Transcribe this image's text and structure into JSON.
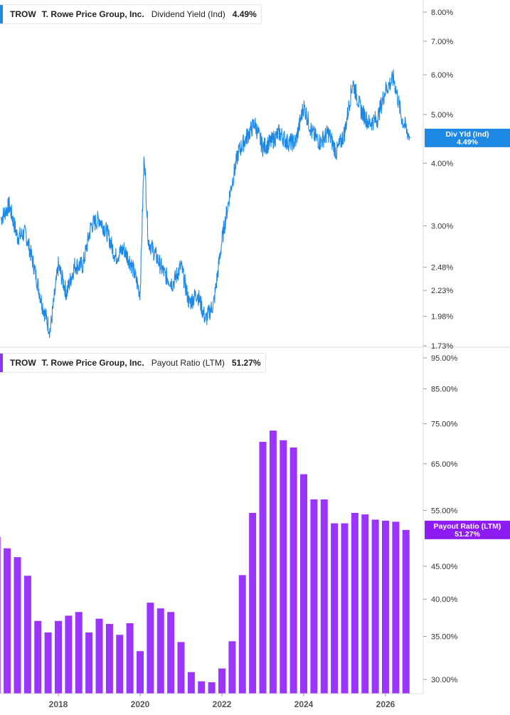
{
  "colors": {
    "yield_line": "#1e88e5",
    "payout_bar": "#9b34ff",
    "payout_tag": "#8e1cf2",
    "yield_tag": "#1e88e5"
  },
  "top_legend": {
    "ticker": "TROW",
    "company": "T. Rowe Price Group, Inc.",
    "metric": "Dividend Yield (Ind)",
    "value": "4.49%"
  },
  "bottom_legend": {
    "ticker": "TROW",
    "company": "T. Rowe Price Group, Inc.",
    "metric": "Payout Ratio (LTM)",
    "value": "51.27%"
  },
  "chart_data": [
    {
      "type": "line",
      "series": [
        {
          "name": "Div Yld (Ind)"
        }
      ],
      "scale": "log",
      "y_ticks": [
        "1.73%",
        "1.98%",
        "2.23%",
        "2.48%",
        "3.00%",
        "4.00%",
        "5.00%",
        "6.00%",
        "7.00%",
        "8.00%"
      ],
      "y_tick_values": [
        1.73,
        1.98,
        2.23,
        2.48,
        3.0,
        4.0,
        5.0,
        6.0,
        7.0,
        8.0
      ],
      "current_tag": {
        "label": "Div Yld (Ind)",
        "value": "4.49%"
      },
      "x": [
        2016.6,
        2016.8,
        2017.0,
        2017.2,
        2017.4,
        2017.6,
        2017.8,
        2018.0,
        2018.2,
        2018.4,
        2018.6,
        2018.8,
        2019.0,
        2019.2,
        2019.4,
        2019.6,
        2019.8,
        2020.0,
        2020.1,
        2020.2,
        2020.4,
        2020.6,
        2020.8,
        2021.0,
        2021.2,
        2021.4,
        2021.6,
        2021.8,
        2022.0,
        2022.2,
        2022.4,
        2022.6,
        2022.8,
        2023.0,
        2023.2,
        2023.4,
        2023.6,
        2023.8,
        2024.0,
        2024.2,
        2024.4,
        2024.6,
        2024.8,
        2025.0,
        2025.2,
        2025.4,
        2025.6,
        2025.8,
        2026.0,
        2026.2,
        2026.4,
        2026.6
      ],
      "y": [
        3.1,
        3.3,
        2.85,
        2.9,
        2.5,
        2.1,
        1.85,
        2.5,
        2.2,
        2.5,
        2.5,
        3.0,
        3.1,
        2.9,
        2.6,
        2.7,
        2.5,
        2.2,
        4.2,
        2.8,
        2.6,
        2.4,
        2.3,
        2.5,
        2.1,
        2.2,
        1.95,
        2.1,
        2.8,
        3.5,
        4.2,
        4.5,
        4.8,
        4.3,
        4.4,
        4.6,
        4.4,
        4.4,
        5.2,
        4.6,
        4.4,
        4.6,
        4.2,
        4.6,
        5.8,
        5.1,
        4.8,
        4.9,
        5.6,
        5.9,
        4.9,
        4.49
      ]
    },
    {
      "type": "bar",
      "series": [
        {
          "name": "Payout Ratio (LTM)"
        }
      ],
      "scale": "log",
      "y_ticks": [
        "30.00%",
        "35.00%",
        "40.00%",
        "45.00%",
        "55.00%",
        "65.00%",
        "75.00%",
        "85.00%",
        "95.00%"
      ],
      "y_tick_values": [
        30,
        35,
        40,
        45,
        55,
        65,
        75,
        85,
        95
      ],
      "x_ticks": [
        "2018",
        "2020",
        "2022",
        "2024",
        "2026"
      ],
      "x_tick_values": [
        2018,
        2020,
        2022,
        2024,
        2026
      ],
      "current_tag": {
        "label": "Payout Ratio (LTM)",
        "value": "51.27%"
      },
      "x": [
        2016.5,
        2016.75,
        2017.0,
        2017.25,
        2017.5,
        2017.75,
        2018.0,
        2018.25,
        2018.5,
        2018.75,
        2019.0,
        2019.25,
        2019.5,
        2019.75,
        2020.0,
        2020.25,
        2020.5,
        2020.75,
        2021.0,
        2021.25,
        2021.5,
        2021.75,
        2022.0,
        2022.25,
        2022.5,
        2022.75,
        2023.0,
        2023.25,
        2023.5,
        2023.75,
        2024.0,
        2024.25,
        2024.5,
        2024.75,
        2025.0,
        2025.25,
        2025.5,
        2025.75,
        2026.0,
        2026.25,
        2026.5
      ],
      "values": [
        50,
        48,
        46.5,
        43.5,
        37,
        35.5,
        37,
        37.7,
        38.2,
        35.5,
        37.3,
        36.6,
        35.2,
        36.7,
        33.2,
        39.5,
        38.7,
        38.2,
        34.3,
        30.8,
        29.8,
        29.7,
        31.2,
        34.4,
        43.6,
        54.5,
        70.3,
        73.2,
        70.7,
        68.9,
        62.6,
        57.2,
        57.2,
        52.5,
        52.5,
        54.5,
        54.2,
        53.2,
        53.0,
        52.8,
        51.27
      ]
    }
  ]
}
